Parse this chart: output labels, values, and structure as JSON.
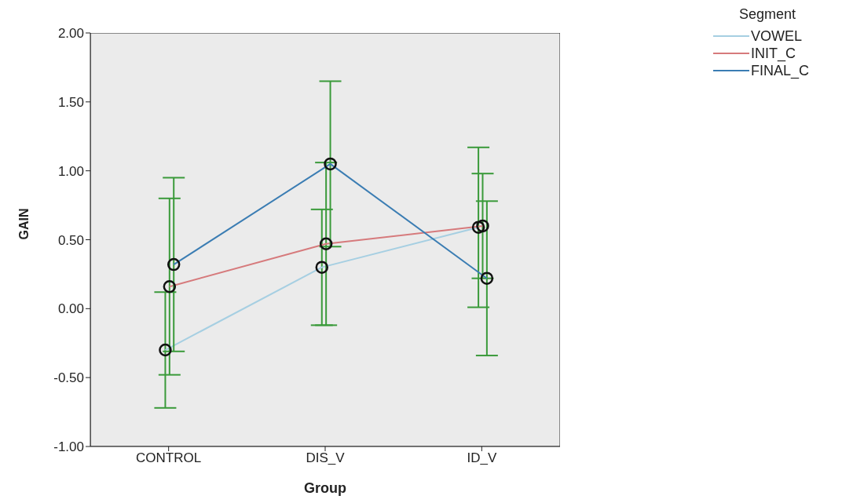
{
  "chart_data": {
    "type": "line",
    "xlabel": "Group",
    "ylabel": "GAIN",
    "legend_title": "Segment",
    "categories": [
      "CONTROL",
      "DIS_V",
      "ID_V"
    ],
    "series": [
      {
        "name": "VOWEL",
        "color": "#a6cfe2",
        "values": [
          -0.3,
          0.3,
          0.59
        ],
        "errors": [
          0.42,
          0.42,
          0.58
        ]
      },
      {
        "name": "INIT_C",
        "color": "#d67a7c",
        "values": [
          0.16,
          0.47,
          0.6
        ],
        "errors": [
          0.64,
          0.59,
          0.38
        ]
      },
      {
        "name": "FINAL_C",
        "color": "#3b7db3",
        "values": [
          0.32,
          1.05,
          0.22
        ],
        "errors": [
          0.63,
          0.6,
          0.56
        ]
      }
    ],
    "ylim": [
      -1,
      2
    ],
    "yticks": [
      {
        "value": -1,
        "label": "-1.00"
      },
      {
        "value": -0.5,
        "label": "-0.50"
      },
      {
        "value": 0,
        "label": "0.00"
      },
      {
        "value": 0.5,
        "label": "0.50"
      },
      {
        "value": 1,
        "label": "1.00"
      },
      {
        "value": 1.5,
        "label": "1.50"
      },
      {
        "value": 2,
        "label": "2.00"
      }
    ],
    "grid": false,
    "legend": "top right",
    "marker": "circle",
    "line_style": "solid"
  }
}
